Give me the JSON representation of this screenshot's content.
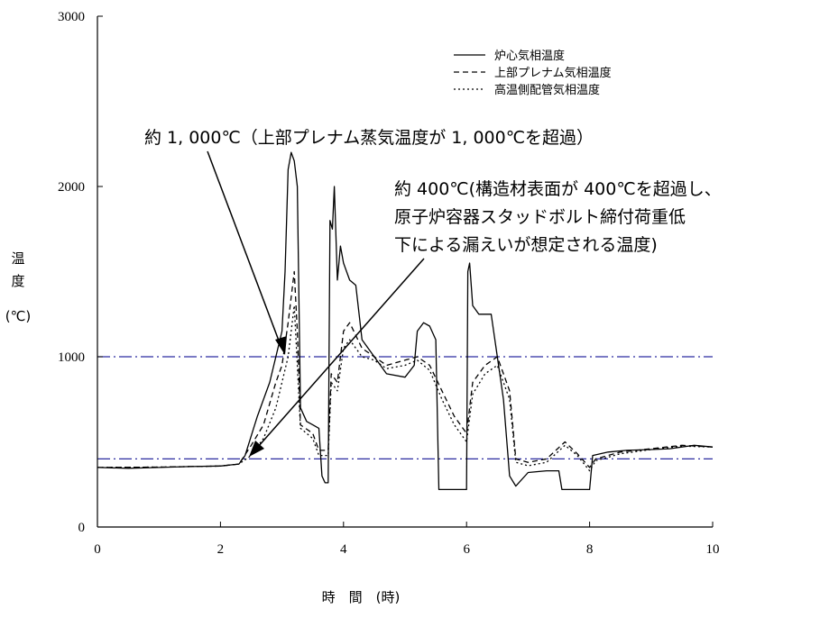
{
  "chart_data": {
    "type": "line",
    "xlabel": "時　間　(時)",
    "ylabel_lines": [
      "温",
      "度",
      "(℃)"
    ],
    "xlim": [
      0,
      10
    ],
    "ylim": [
      0,
      3000
    ],
    "x_ticks": [
      "0",
      "2",
      "4",
      "6",
      "8",
      "10"
    ],
    "y_ticks": [
      "0",
      "1000",
      "2000",
      "3000"
    ],
    "grid": false,
    "legend_position": "top-right",
    "reference_lines": [
      {
        "y": 1000,
        "color": "#2a2aa0",
        "style": "dash-dot"
      },
      {
        "y": 400,
        "color": "#2a2aa0",
        "style": "dash-dot"
      }
    ],
    "series": [
      {
        "name": "炉心気相温度",
        "style": "solid",
        "points": [
          [
            0,
            350
          ],
          [
            0.5,
            345
          ],
          [
            1,
            350
          ],
          [
            1.5,
            355
          ],
          [
            2,
            358
          ],
          [
            2.3,
            370
          ],
          [
            2.4,
            420
          ],
          [
            2.6,
            650
          ],
          [
            2.8,
            850
          ],
          [
            3.0,
            1150
          ],
          [
            3.05,
            1500
          ],
          [
            3.1,
            2100
          ],
          [
            3.15,
            2200
          ],
          [
            3.2,
            2150
          ],
          [
            3.25,
            2000
          ],
          [
            3.3,
            700
          ],
          [
            3.4,
            620
          ],
          [
            3.5,
            600
          ],
          [
            3.6,
            580
          ],
          [
            3.65,
            300
          ],
          [
            3.7,
            260
          ],
          [
            3.75,
            260
          ],
          [
            3.78,
            1800
          ],
          [
            3.82,
            1750
          ],
          [
            3.85,
            2000
          ],
          [
            3.9,
            1450
          ],
          [
            3.95,
            1650
          ],
          [
            4.0,
            1550
          ],
          [
            4.1,
            1450
          ],
          [
            4.2,
            1420
          ],
          [
            4.3,
            1100
          ],
          [
            4.5,
            1000
          ],
          [
            4.7,
            900
          ],
          [
            5.0,
            880
          ],
          [
            5.15,
            950
          ],
          [
            5.2,
            1150
          ],
          [
            5.3,
            1200
          ],
          [
            5.4,
            1180
          ],
          [
            5.5,
            1100
          ],
          [
            5.55,
            220
          ],
          [
            5.7,
            220
          ],
          [
            6.0,
            220
          ],
          [
            6.02,
            1500
          ],
          [
            6.05,
            1550
          ],
          [
            6.1,
            1300
          ],
          [
            6.2,
            1250
          ],
          [
            6.4,
            1250
          ],
          [
            6.5,
            1000
          ],
          [
            6.6,
            750
          ],
          [
            6.7,
            300
          ],
          [
            6.8,
            240
          ],
          [
            7.0,
            320
          ],
          [
            7.3,
            330
          ],
          [
            7.5,
            330
          ],
          [
            7.55,
            220
          ],
          [
            7.7,
            220
          ],
          [
            8.0,
            220
          ],
          [
            8.05,
            420
          ],
          [
            8.3,
            440
          ],
          [
            8.6,
            450
          ],
          [
            9.0,
            455
          ],
          [
            9.3,
            460
          ],
          [
            9.7,
            480
          ],
          [
            10.0,
            470
          ]
        ]
      },
      {
        "name": "上部プレナム気相温度",
        "style": "dashed",
        "points": [
          [
            0,
            350
          ],
          [
            1,
            352
          ],
          [
            2,
            358
          ],
          [
            2.3,
            370
          ],
          [
            2.5,
            480
          ],
          [
            2.7,
            600
          ],
          [
            2.9,
            850
          ],
          [
            3.0,
            950
          ],
          [
            3.1,
            1200
          ],
          [
            3.2,
            1500
          ],
          [
            3.25,
            1150
          ],
          [
            3.3,
            600
          ],
          [
            3.5,
            550
          ],
          [
            3.6,
            450
          ],
          [
            3.75,
            450
          ],
          [
            3.8,
            900
          ],
          [
            3.9,
            850
          ],
          [
            4.0,
            1150
          ],
          [
            4.1,
            1200
          ],
          [
            4.3,
            1050
          ],
          [
            4.5,
            1000
          ],
          [
            4.7,
            950
          ],
          [
            5.0,
            980
          ],
          [
            5.2,
            1000
          ],
          [
            5.4,
            950
          ],
          [
            5.6,
            800
          ],
          [
            5.8,
            650
          ],
          [
            6.0,
            550
          ],
          [
            6.1,
            850
          ],
          [
            6.3,
            950
          ],
          [
            6.5,
            1000
          ],
          [
            6.7,
            800
          ],
          [
            6.8,
            400
          ],
          [
            7.0,
            380
          ],
          [
            7.3,
            400
          ],
          [
            7.6,
            500
          ],
          [
            7.8,
            430
          ],
          [
            8.0,
            350
          ],
          [
            8.1,
            400
          ],
          [
            8.5,
            440
          ],
          [
            9.0,
            460
          ],
          [
            9.5,
            480
          ],
          [
            10.0,
            470
          ]
        ]
      },
      {
        "name": "高温側配管気相温度",
        "style": "dotted",
        "points": [
          [
            0,
            350
          ],
          [
            1,
            352
          ],
          [
            2,
            358
          ],
          [
            2.3,
            370
          ],
          [
            2.5,
            420
          ],
          [
            2.7,
            520
          ],
          [
            2.9,
            700
          ],
          [
            3.0,
            850
          ],
          [
            3.1,
            1000
          ],
          [
            3.2,
            1300
          ],
          [
            3.25,
            950
          ],
          [
            3.3,
            580
          ],
          [
            3.5,
            520
          ],
          [
            3.6,
            420
          ],
          [
            3.75,
            420
          ],
          [
            3.8,
            850
          ],
          [
            3.9,
            800
          ],
          [
            4.0,
            1050
          ],
          [
            4.1,
            1100
          ],
          [
            4.3,
            1000
          ],
          [
            4.5,
            980
          ],
          [
            4.7,
            930
          ],
          [
            5.0,
            950
          ],
          [
            5.2,
            980
          ],
          [
            5.4,
            920
          ],
          [
            5.6,
            750
          ],
          [
            5.8,
            600
          ],
          [
            6.0,
            500
          ],
          [
            6.1,
            780
          ],
          [
            6.3,
            900
          ],
          [
            6.5,
            950
          ],
          [
            6.7,
            750
          ],
          [
            6.8,
            380
          ],
          [
            7.0,
            360
          ],
          [
            7.3,
            380
          ],
          [
            7.6,
            480
          ],
          [
            7.8,
            420
          ],
          [
            8.0,
            330
          ],
          [
            8.1,
            390
          ],
          [
            8.5,
            430
          ],
          [
            9.0,
            455
          ],
          [
            9.5,
            475
          ],
          [
            10.0,
            470
          ]
        ]
      }
    ],
    "annotations": [
      {
        "text": "約 1, 000℃（上部プレナム蒸気温度が 1, 000℃を超過）",
        "x": 3.0,
        "y": 1000
      },
      {
        "text": [
          "約 400℃(構造材表面が 400℃を超過し、",
          "原子炉容器スタッドボルト締付荷重低",
          "下による漏えいが想定される温度)"
        ],
        "x": 2.4,
        "y": 400
      }
    ]
  }
}
